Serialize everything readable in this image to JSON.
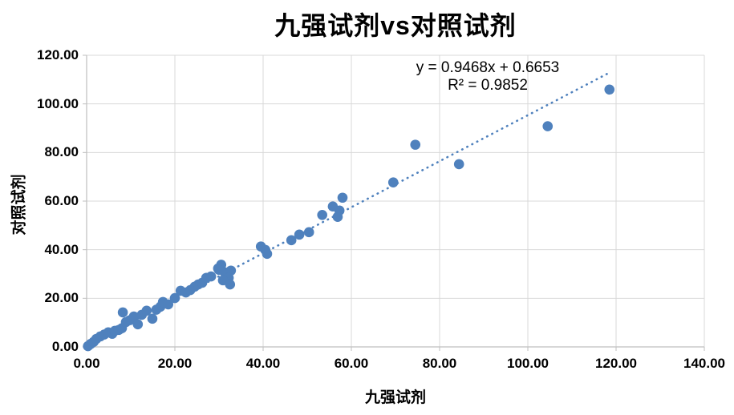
{
  "chart_data": {
    "type": "scatter",
    "title": "九强试剂vs对照试剂",
    "xlabel": "九强试剂",
    "ylabel": "对照试剂",
    "xlim": [
      0,
      140
    ],
    "ylim": [
      0,
      120
    ],
    "x_tick_labels": [
      "0.00",
      "20.00",
      "40.00",
      "60.00",
      "80.00",
      "100.00",
      "120.00",
      "140.00"
    ],
    "y_tick_labels": [
      "0.00",
      "20.00",
      "40.00",
      "60.00",
      "80.00",
      "100.00",
      "120.00"
    ],
    "grid": true,
    "legend": "none",
    "marker_color": "#4F81BD",
    "gridline_color": "#D9D9D9",
    "axis_color": "#BFBFBF",
    "points": [
      [
        0.3,
        0.3
      ],
      [
        0.9,
        1.2
      ],
      [
        1.6,
        2.1
      ],
      [
        2.2,
        3.3
      ],
      [
        3.1,
        4.3
      ],
      [
        4.0,
        5.1
      ],
      [
        4.9,
        6.0
      ],
      [
        5.8,
        5.4
      ],
      [
        6.4,
        6.6
      ],
      [
        7.3,
        7.0
      ],
      [
        8.0,
        7.7
      ],
      [
        8.2,
        14.2
      ],
      [
        8.9,
        10.2
      ],
      [
        9.8,
        11.0
      ],
      [
        10.7,
        12.5
      ],
      [
        11.6,
        9.3
      ],
      [
        12.5,
        13.2
      ],
      [
        13.6,
        14.9
      ],
      [
        14.9,
        11.6
      ],
      [
        15.8,
        15.3
      ],
      [
        16.7,
        16.5
      ],
      [
        17.3,
        18.5
      ],
      [
        18.5,
        17.5
      ],
      [
        20.0,
        20.1
      ],
      [
        21.3,
        23.1
      ],
      [
        22.5,
        22.4
      ],
      [
        23.5,
        23.4
      ],
      [
        24.5,
        24.8
      ],
      [
        25.3,
        25.7
      ],
      [
        26.2,
        26.4
      ],
      [
        27.1,
        28.4
      ],
      [
        28.2,
        29.0
      ],
      [
        29.8,
        32.3
      ],
      [
        30.5,
        33.8
      ],
      [
        30.0,
        31.7
      ],
      [
        31.3,
        30.7
      ],
      [
        32.7,
        31.4
      ],
      [
        32.2,
        28.4
      ],
      [
        30.9,
        27.4
      ],
      [
        32.5,
        25.7
      ],
      [
        39.5,
        41.3
      ],
      [
        40.5,
        39.9
      ],
      [
        40.9,
        38.3
      ],
      [
        46.4,
        43.9
      ],
      [
        48.2,
        46.2
      ],
      [
        50.4,
        47.2
      ],
      [
        53.4,
        54.3
      ],
      [
        55.8,
        57.8
      ],
      [
        57.3,
        56.1
      ],
      [
        56.9,
        53.5
      ],
      [
        58.0,
        61.4
      ],
      [
        69.5,
        67.7
      ],
      [
        74.5,
        83.2
      ],
      [
        84.4,
        75.2
      ],
      [
        104.5,
        90.8
      ],
      [
        118.5,
        105.9
      ]
    ],
    "trendline": {
      "equation": "y = 0.9468x + 0.6653",
      "r_squared_label": "R² = 0.9852",
      "slope": 0.9468,
      "intercept": 0.6653,
      "x_start": 0.5,
      "x_end": 118.5,
      "style": "dotted",
      "color": "#4F81BD"
    }
  }
}
